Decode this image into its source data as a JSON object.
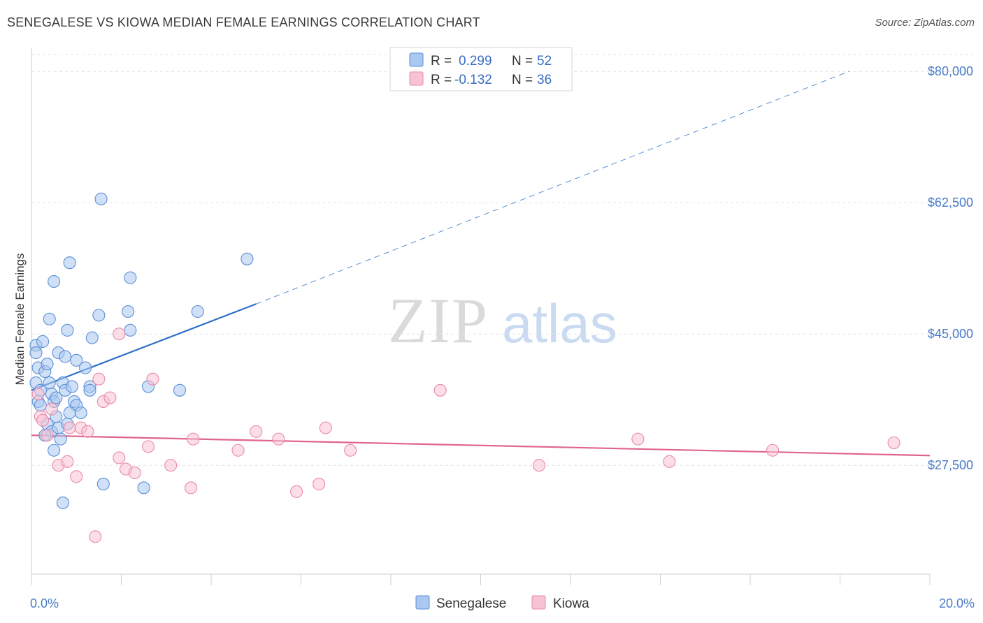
{
  "title": "SENEGALESE VS KIOWA MEDIAN FEMALE EARNINGS CORRELATION CHART",
  "source": "Source: ZipAtlas.com",
  "watermark": {
    "zip": "ZIP",
    "atlas": "atlas"
  },
  "colors": {
    "senegalese_fill": "#aac8f0",
    "senegalese_stroke": "#5b8fd6",
    "senegalese_line": "#2f6fc9",
    "kiowa_fill": "#f7c3d4",
    "kiowa_stroke": "#e98aaa",
    "kiowa_line": "#e0648f",
    "axis_text": "#4a7cc9",
    "grid": "#e3e3e3"
  },
  "legend": {
    "rows": [
      {
        "r_label": "R =",
        "r_value": "0.299",
        "n_label": "N =",
        "n_value": "52"
      },
      {
        "r_label": "R =",
        "r_value": "-0.132",
        "n_label": "N =",
        "n_value": "36"
      }
    ]
  },
  "bottom_legend": [
    "Senegalese",
    "Kiowa"
  ],
  "chart_data": {
    "type": "scatter",
    "title": "SENEGALESE VS KIOWA MEDIAN FEMALE EARNINGS CORRELATION CHART",
    "xlabel": "",
    "ylabel": "Median Female Earnings",
    "xlim": [
      0,
      20
    ],
    "ylim": [
      13000,
      83000
    ],
    "x_tick_labels": [
      "0.0%",
      "20.0%"
    ],
    "y_ticks": [
      27500,
      45000,
      62500,
      80000
    ],
    "y_tick_labels": [
      "$27,500",
      "$45,000",
      "$62,500",
      "$80,000"
    ],
    "grid": true,
    "legend_position": "top-center",
    "series": [
      {
        "name": "Senegalese",
        "R": 0.299,
        "N": 52,
        "trend": {
          "x0": 0.0,
          "y0": 37500,
          "x1": 5.0,
          "y1": 49000,
          "x_dash_end": 18.2,
          "y_dash_end": 80000
        },
        "points": [
          [
            0.1,
            43.5
          ],
          [
            0.1,
            42.5
          ],
          [
            0.15,
            40.5
          ],
          [
            0.1,
            38.5
          ],
          [
            0.2,
            37.5
          ],
          [
            0.15,
            36
          ],
          [
            0.3,
            40
          ],
          [
            0.35,
            41
          ],
          [
            0.4,
            38.5
          ],
          [
            0.45,
            37
          ],
          [
            0.5,
            36
          ],
          [
            0.2,
            35.5
          ],
          [
            0.35,
            33
          ],
          [
            0.45,
            32
          ],
          [
            0.3,
            31.5
          ],
          [
            0.55,
            36.5
          ],
          [
            0.6,
            42.5
          ],
          [
            0.7,
            38.5
          ],
          [
            0.75,
            37.5
          ],
          [
            0.55,
            34
          ],
          [
            0.6,
            32.5
          ],
          [
            0.5,
            29.5
          ],
          [
            0.65,
            31
          ],
          [
            0.8,
            33
          ],
          [
            0.9,
            38
          ],
          [
            0.95,
            36
          ],
          [
            1.0,
            35.5
          ],
          [
            1.1,
            34.5
          ],
          [
            0.85,
            34.5
          ],
          [
            0.75,
            42
          ],
          [
            1.0,
            41.5
          ],
          [
            1.2,
            40.5
          ],
          [
            0.4,
            47
          ],
          [
            0.5,
            52
          ],
          [
            0.8,
            45.5
          ],
          [
            0.85,
            54.5
          ],
          [
            1.35,
            44.5
          ],
          [
            1.5,
            47.5
          ],
          [
            1.55,
            63
          ],
          [
            2.15,
            48
          ],
          [
            2.2,
            45.5
          ],
          [
            2.2,
            52.5
          ],
          [
            1.3,
            38
          ],
          [
            1.3,
            37.5
          ],
          [
            2.6,
            38
          ],
          [
            3.3,
            37.5
          ],
          [
            3.7,
            48
          ],
          [
            4.8,
            55
          ],
          [
            1.6,
            25
          ],
          [
            2.5,
            24.5
          ],
          [
            0.7,
            22.5
          ],
          [
            0.25,
            44
          ]
        ]
      },
      {
        "name": "Kiowa",
        "R": -0.132,
        "N": 36,
        "trend": {
          "x0": 0.0,
          "y0": 31500,
          "x1": 20.0,
          "y1": 28800
        },
        "points": [
          [
            0.15,
            37
          ],
          [
            0.2,
            34
          ],
          [
            0.25,
            33.5
          ],
          [
            0.35,
            31.5
          ],
          [
            0.45,
            35
          ],
          [
            0.6,
            27.5
          ],
          [
            0.8,
            28
          ],
          [
            0.85,
            32.5
          ],
          [
            1.0,
            26
          ],
          [
            1.1,
            32.5
          ],
          [
            1.25,
            32
          ],
          [
            1.5,
            39
          ],
          [
            1.6,
            36
          ],
          [
            1.75,
            36.5
          ],
          [
            1.95,
            45
          ],
          [
            1.95,
            28.5
          ],
          [
            2.1,
            27
          ],
          [
            2.3,
            26.5
          ],
          [
            2.6,
            30
          ],
          [
            2.7,
            39
          ],
          [
            3.1,
            27.5
          ],
          [
            3.6,
            31
          ],
          [
            3.55,
            24.5
          ],
          [
            4.6,
            29.5
          ],
          [
            5.0,
            32
          ],
          [
            5.5,
            31
          ],
          [
            5.9,
            24
          ],
          [
            6.4,
            25
          ],
          [
            6.55,
            32.5
          ],
          [
            7.1,
            29.5
          ],
          [
            9.1,
            37.5
          ],
          [
            11.3,
            27.5
          ],
          [
            13.5,
            31
          ],
          [
            14.2,
            28
          ],
          [
            16.5,
            29.5
          ],
          [
            19.2,
            30.5
          ]
        ],
        "extra_points": [
          [
            1.42,
            18
          ]
        ]
      }
    ]
  }
}
